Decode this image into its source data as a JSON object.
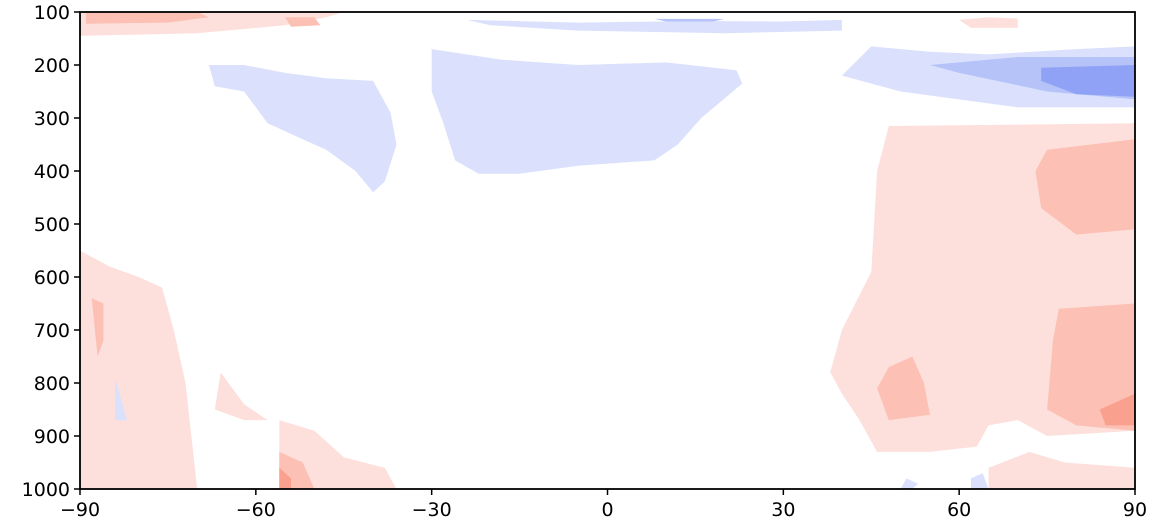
{
  "chart_data": {
    "type": "heatmap",
    "subtype": "filled-contour",
    "title": "",
    "xlabel": "",
    "ylabel": "",
    "xlim": [
      -90,
      90
    ],
    "ylim": [
      1000,
      100
    ],
    "y_inverted": true,
    "x_ticks": [
      -90,
      -60,
      -30,
      0,
      30,
      60,
      90
    ],
    "x_tick_labels": [
      "−90",
      "−60",
      "−30",
      "0",
      "30",
      "60",
      "90"
    ],
    "y_ticks": [
      100,
      200,
      300,
      400,
      500,
      600,
      700,
      800,
      900,
      1000
    ],
    "y_tick_labels": [
      "100",
      "200",
      "300",
      "400",
      "500",
      "600",
      "700",
      "800",
      "900",
      "1000"
    ],
    "grid": false,
    "colormap": "diverging blue-white-red (bwr)",
    "colors": {
      "neg3": "#8fa2f5",
      "neg2": "#b5c3f8",
      "neg1": "#dbe1fc",
      "pos1": "#fde0dc",
      "pos2": "#fcc0b4",
      "pos3": "#faa08e",
      "axis": "#000000"
    },
    "regions": [
      {
        "level": "pos1",
        "points": [
          [
            -90,
            100
          ],
          [
            -45,
            100
          ],
          [
            -48,
            110
          ],
          [
            -55,
            125
          ],
          [
            -70,
            140
          ],
          [
            -90,
            145
          ]
        ]
      },
      {
        "level": "pos2",
        "points": [
          [
            -89,
            100
          ],
          [
            -70,
            100
          ],
          [
            -68,
            110
          ],
          [
            -75,
            120
          ],
          [
            -89,
            122
          ]
        ]
      },
      {
        "level": "pos2",
        "points": [
          [
            -55,
            110
          ],
          [
            -50,
            110
          ],
          [
            -49,
            125
          ],
          [
            -54,
            128
          ]
        ]
      },
      {
        "level": "neg1",
        "points": [
          [
            -24,
            115
          ],
          [
            -5,
            120
          ],
          [
            15,
            117
          ],
          [
            30,
            118
          ],
          [
            40,
            115
          ],
          [
            40,
            135
          ],
          [
            20,
            140
          ],
          [
            -5,
            135
          ],
          [
            -20,
            125
          ]
        ]
      },
      {
        "level": "neg2",
        "points": [
          [
            8,
            113
          ],
          [
            20,
            113
          ],
          [
            18,
            118
          ],
          [
            10,
            118
          ]
        ]
      },
      {
        "level": "neg1",
        "points": [
          [
            -68,
            200
          ],
          [
            -62,
            200
          ],
          [
            -55,
            215
          ],
          [
            -48,
            225
          ],
          [
            -40,
            230
          ],
          [
            -37,
            290
          ],
          [
            -36,
            350
          ],
          [
            -38,
            420
          ],
          [
            -40,
            440
          ],
          [
            -43,
            400
          ],
          [
            -48,
            360
          ],
          [
            -52,
            340
          ],
          [
            -58,
            310
          ],
          [
            -62,
            250
          ],
          [
            -67,
            240
          ]
        ]
      },
      {
        "level": "neg1",
        "points": [
          [
            -30,
            170
          ],
          [
            -18,
            190
          ],
          [
            -5,
            200
          ],
          [
            10,
            195
          ],
          [
            22,
            210
          ],
          [
            23,
            235
          ],
          [
            16,
            300
          ],
          [
            12,
            350
          ],
          [
            8,
            380
          ],
          [
            -5,
            390
          ],
          [
            -15,
            405
          ],
          [
            -22,
            405
          ],
          [
            -26,
            380
          ],
          [
            -28,
            310
          ],
          [
            -30,
            250
          ]
        ]
      },
      {
        "level": "neg1",
        "points": [
          [
            40,
            220
          ],
          [
            45,
            165
          ],
          [
            55,
            175
          ],
          [
            65,
            180
          ],
          [
            80,
            170
          ],
          [
            90,
            165
          ],
          [
            90,
            280
          ],
          [
            70,
            280
          ],
          [
            50,
            250
          ]
        ]
      },
      {
        "level": "neg2",
        "points": [
          [
            55,
            200
          ],
          [
            70,
            185
          ],
          [
            90,
            185
          ],
          [
            90,
            265
          ],
          [
            75,
            250
          ],
          [
            60,
            215
          ]
        ]
      },
      {
        "level": "neg3",
        "points": [
          [
            74,
            205
          ],
          [
            90,
            200
          ],
          [
            90,
            260
          ],
          [
            80,
            255
          ],
          [
            74,
            230
          ]
        ]
      },
      {
        "level": "pos1",
        "points": [
          [
            60,
            115
          ],
          [
            65,
            110
          ],
          [
            70,
            112
          ],
          [
            70,
            130
          ],
          [
            62,
            130
          ]
        ]
      },
      {
        "level": "pos1",
        "points": [
          [
            48,
            315
          ],
          [
            90,
            310
          ],
          [
            90,
            890
          ],
          [
            75,
            900
          ],
          [
            70,
            870
          ],
          [
            65,
            880
          ],
          [
            63,
            920
          ],
          [
            55,
            930
          ],
          [
            46,
            930
          ],
          [
            43,
            870
          ],
          [
            40,
            820
          ],
          [
            38,
            780
          ],
          [
            40,
            700
          ],
          [
            45,
            590
          ],
          [
            46,
            400
          ]
        ]
      },
      {
        "level": "pos2",
        "points": [
          [
            75,
            360
          ],
          [
            90,
            340
          ],
          [
            90,
            510
          ],
          [
            80,
            520
          ],
          [
            74,
            470
          ],
          [
            73,
            400
          ]
        ]
      },
      {
        "level": "pos2",
        "points": [
          [
            77,
            660
          ],
          [
            90,
            650
          ],
          [
            90,
            890
          ],
          [
            80,
            880
          ],
          [
            75,
            850
          ],
          [
            76,
            720
          ]
        ]
      },
      {
        "level": "pos3",
        "points": [
          [
            84,
            850
          ],
          [
            90,
            820
          ],
          [
            90,
            880
          ],
          [
            85,
            880
          ]
        ]
      },
      {
        "level": "pos2",
        "points": [
          [
            48,
            770
          ],
          [
            52,
            750
          ],
          [
            54,
            800
          ],
          [
            55,
            860
          ],
          [
            48,
            870
          ],
          [
            46,
            810
          ]
        ]
      },
      {
        "level": "pos1",
        "points": [
          [
            -90,
            550
          ],
          [
            -85,
            580
          ],
          [
            -80,
            600
          ],
          [
            -76,
            620
          ],
          [
            -74,
            700
          ],
          [
            -72,
            800
          ],
          [
            -70,
            1000
          ],
          [
            -90,
            1000
          ]
        ]
      },
      {
        "level": "pos2",
        "points": [
          [
            -88,
            640
          ],
          [
            -86,
            650
          ],
          [
            -86,
            720
          ],
          [
            -87,
            750
          ]
        ]
      },
      {
        "level": "pos1",
        "points": [
          [
            -66,
            780
          ],
          [
            -62,
            840
          ],
          [
            -58,
            870
          ],
          [
            -62,
            870
          ],
          [
            -67,
            850
          ]
        ]
      },
      {
        "level": "pos1",
        "points": [
          [
            -56,
            870
          ],
          [
            -50,
            890
          ],
          [
            -45,
            940
          ],
          [
            -38,
            960
          ],
          [
            -36,
            1000
          ],
          [
            -56,
            1000
          ]
        ]
      },
      {
        "level": "pos2",
        "points": [
          [
            -56,
            930
          ],
          [
            -52,
            950
          ],
          [
            -50,
            1000
          ],
          [
            -56,
            1000
          ]
        ]
      },
      {
        "level": "pos3",
        "points": [
          [
            -56,
            960
          ],
          [
            -54,
            980
          ],
          [
            -54,
            1000
          ],
          [
            -56,
            1000
          ]
        ]
      },
      {
        "level": "neg1",
        "points": [
          [
            -84,
            790
          ],
          [
            -82,
            870
          ],
          [
            -84,
            870
          ]
        ]
      },
      {
        "level": "pos1",
        "points": [
          [
            65,
            960
          ],
          [
            72,
            930
          ],
          [
            78,
            950
          ],
          [
            90,
            960
          ],
          [
            90,
            1000
          ],
          [
            65,
            1000
          ]
        ]
      },
      {
        "level": "neg1",
        "points": [
          [
            51,
            980
          ],
          [
            53,
            990
          ],
          [
            52,
            1000
          ],
          [
            50,
            1000
          ]
        ]
      },
      {
        "level": "neg1",
        "points": [
          [
            62,
            980
          ],
          [
            64,
            970
          ],
          [
            65,
            1000
          ],
          [
            62,
            1000
          ]
        ]
      }
    ]
  }
}
